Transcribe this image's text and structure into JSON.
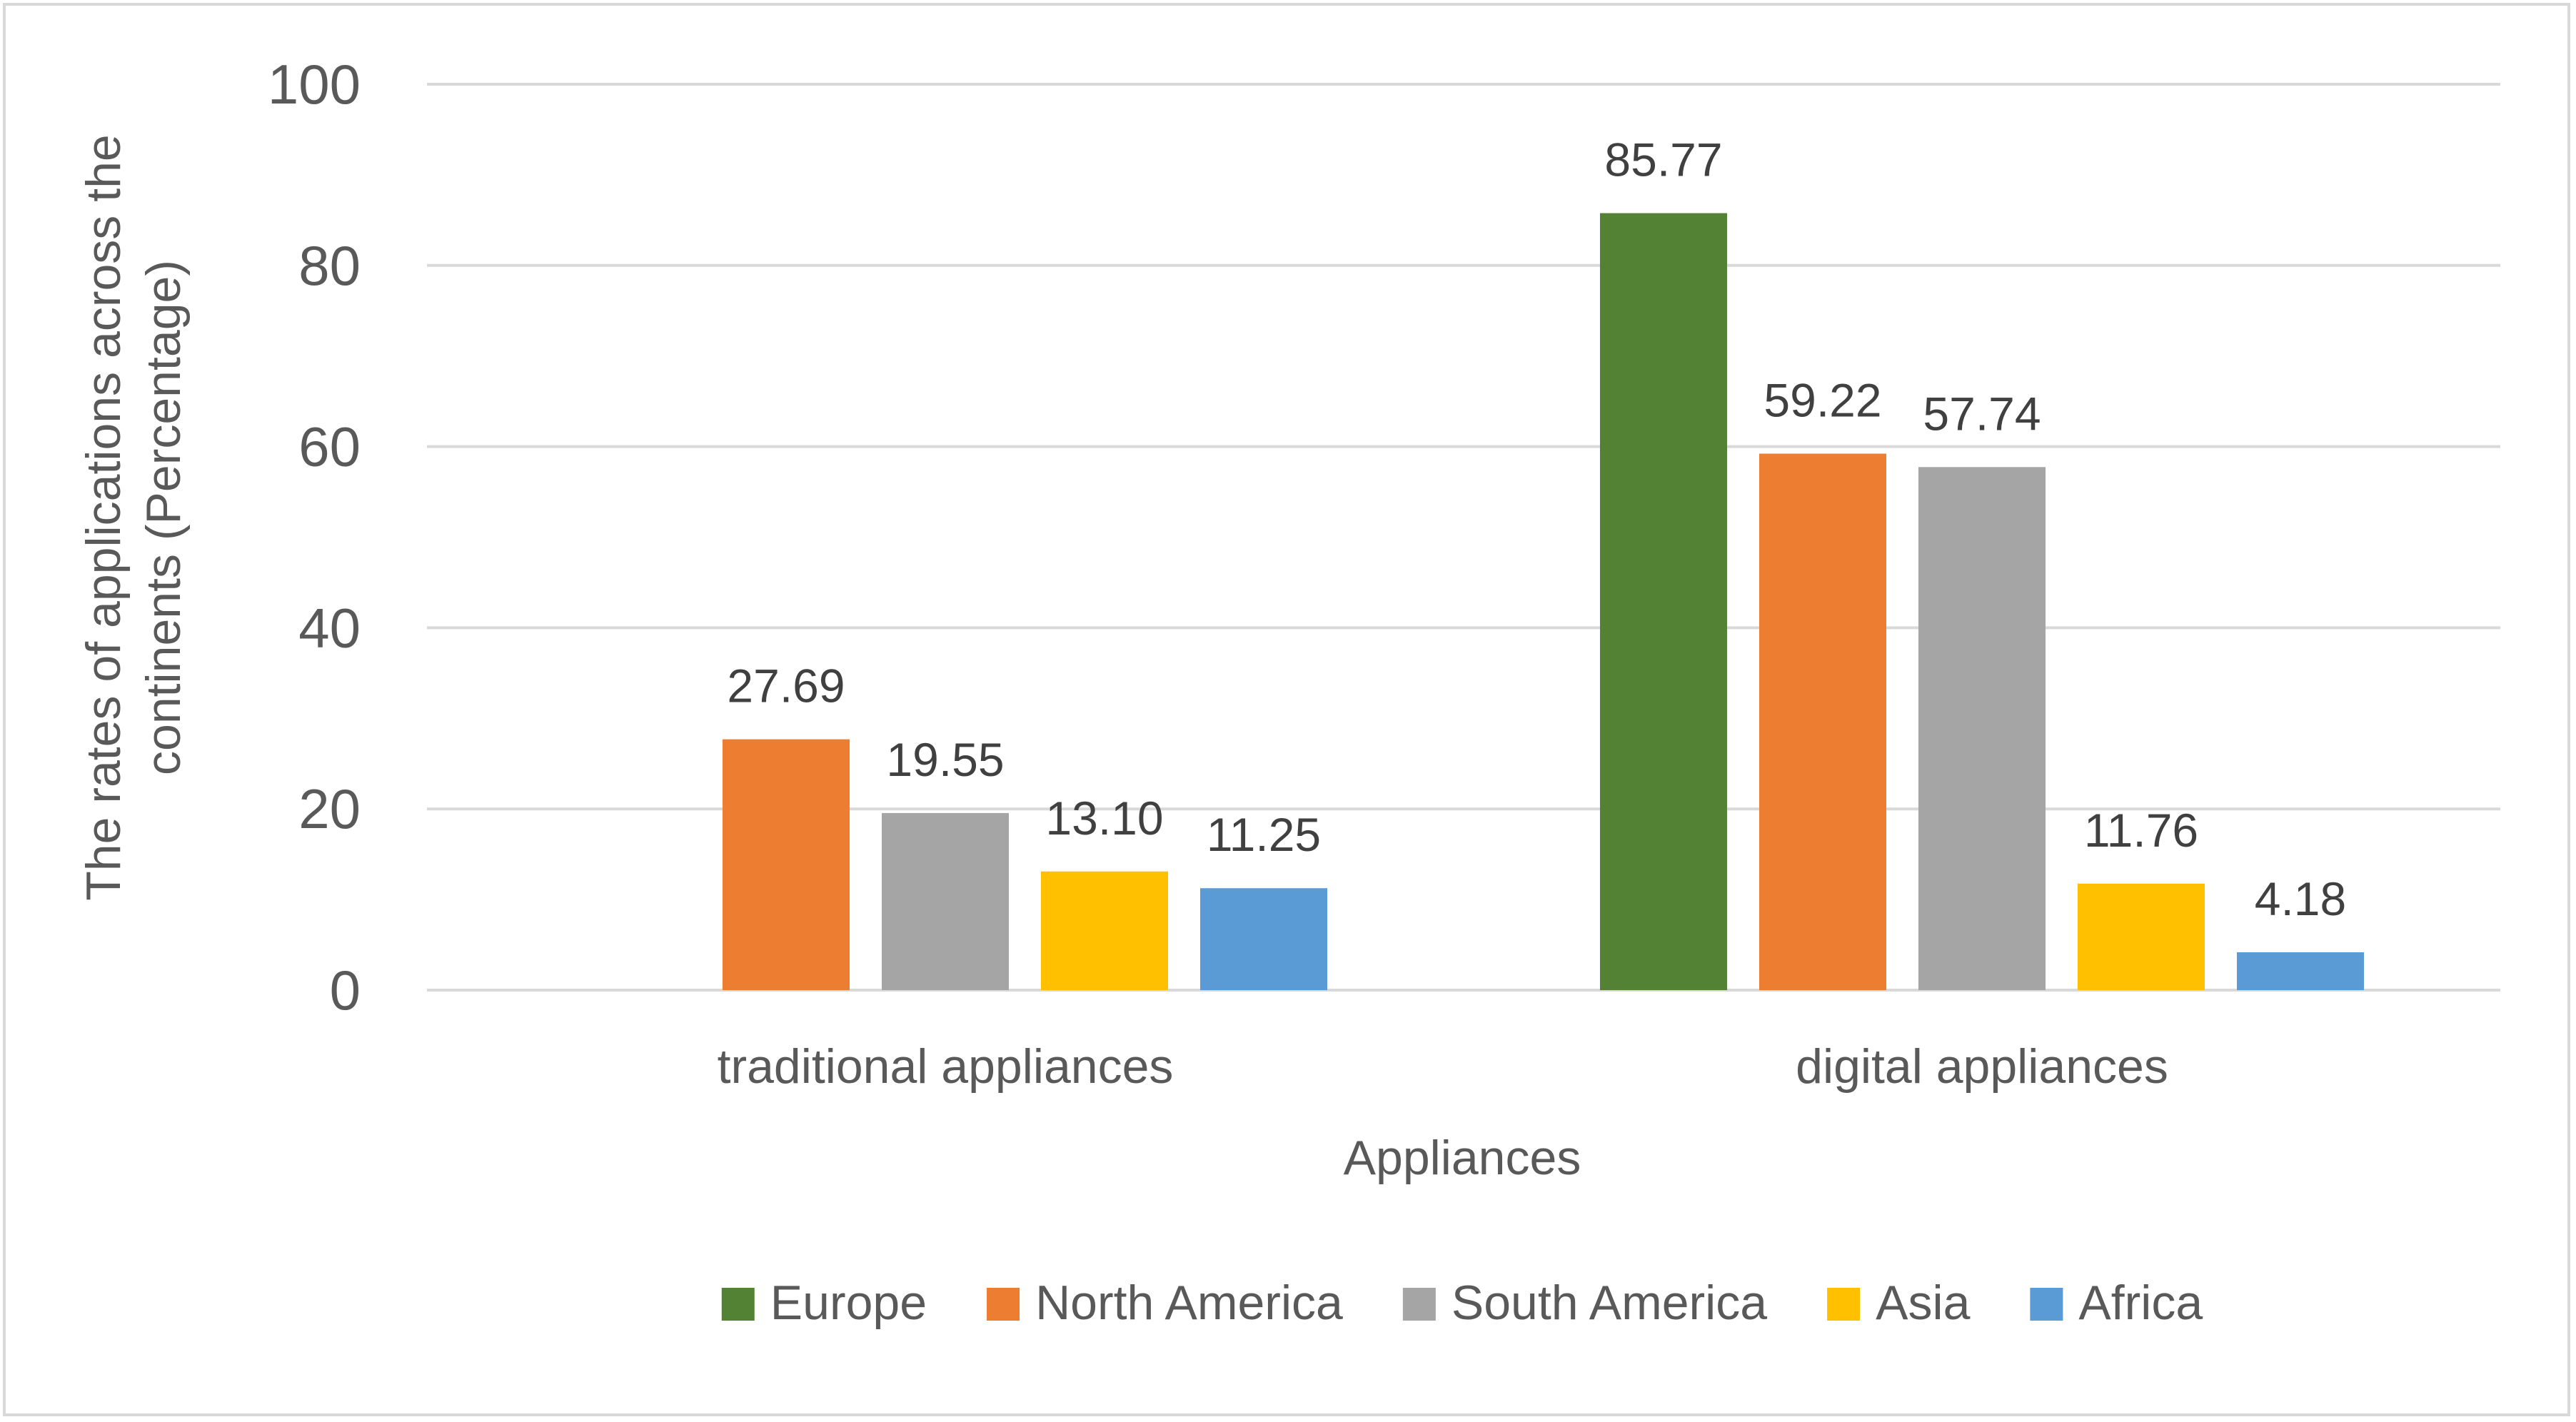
{
  "chart_data": {
    "type": "bar",
    "title": "",
    "xlabel": "Appliances",
    "ylabel_lines": [
      "The rates of applications across the",
      "continents (Percentage)"
    ],
    "ylabel": "The rates of applications across the continents (Percentage)",
    "ylim": [
      0,
      100
    ],
    "yticks": [
      0,
      20,
      40,
      60,
      80,
      100
    ],
    "grid": true,
    "legend_position": "bottom",
    "categories": [
      "traditional appliances",
      "digital appliances"
    ],
    "series": [
      {
        "name": "Europe",
        "color": "#548235",
        "values": [
          null,
          85.77
        ],
        "labels": [
          "",
          "85.77"
        ]
      },
      {
        "name": "North America",
        "color": "#ED7D31",
        "values": [
          27.69,
          59.22
        ],
        "labels": [
          "27.69",
          "59.22"
        ]
      },
      {
        "name": "South America",
        "color": "#A5A5A5",
        "values": [
          19.55,
          57.74
        ],
        "labels": [
          "19.55",
          "57.74"
        ]
      },
      {
        "name": "Asia",
        "color": "#FFC000",
        "values": [
          13.1,
          11.76
        ],
        "labels": [
          "13.10",
          "11.76"
        ]
      },
      {
        "name": "Africa",
        "color": "#5B9BD5",
        "values": [
          11.25,
          4.18
        ],
        "labels": [
          "11.25",
          "4.18"
        ]
      }
    ]
  }
}
